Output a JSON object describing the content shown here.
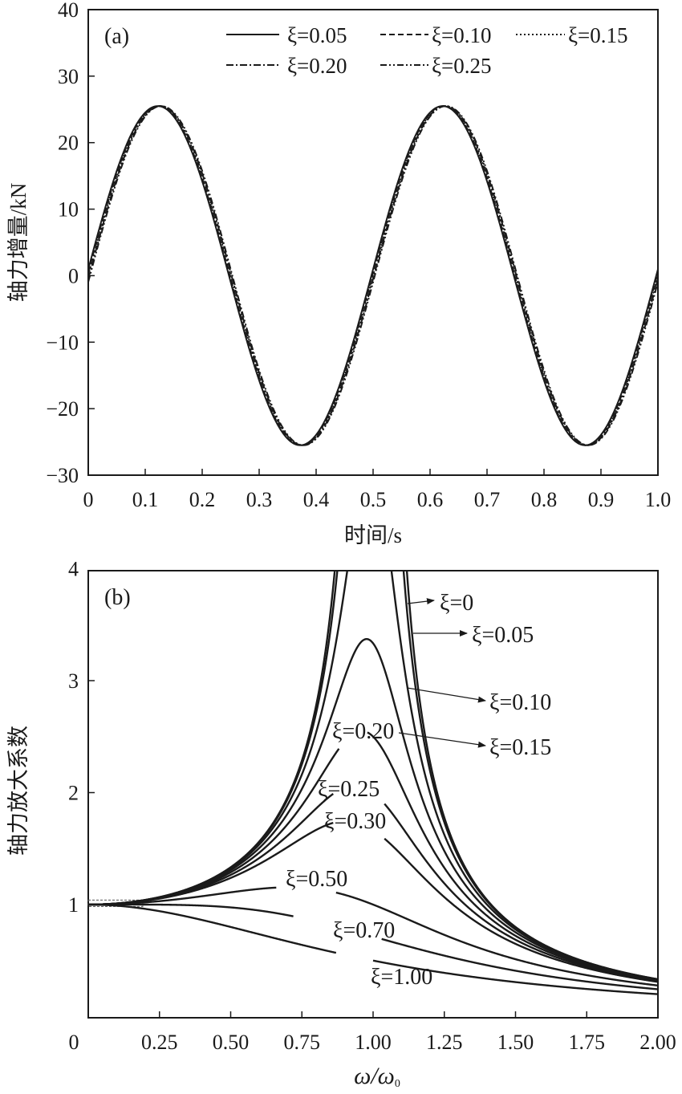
{
  "chart_data": [
    {
      "panel_label": "(a)",
      "type": "line",
      "xlabel": "时间/s",
      "ylabel": "轴力增量/kN",
      "xlim": [
        0,
        1.0
      ],
      "ylim": [
        -30,
        40
      ],
      "xticks": [
        "0",
        "0.1",
        "0.2",
        "0.3",
        "0.4",
        "0.5",
        "0.6",
        "0.7",
        "0.8",
        "0.9",
        "1.0"
      ],
      "yticks": [
        "40",
        "30",
        "20",
        "10",
        "0",
        "−10",
        "−20",
        "−30"
      ],
      "legend_position": "top",
      "series": [
        {
          "name": "ξ=0.05",
          "style": "solid",
          "amplitude": 25.5,
          "period": 0.5
        },
        {
          "name": "ξ=0.10",
          "style": "dashed",
          "amplitude": 25.5,
          "period": 0.5
        },
        {
          "name": "ξ=0.15",
          "style": "dotted",
          "amplitude": 25.5,
          "period": 0.5
        },
        {
          "name": "ξ=0.20",
          "style": "dash-dot",
          "amplitude": 25.5,
          "period": 0.5
        },
        {
          "name": "ξ=0.25",
          "style": "dash-dot-dot",
          "amplitude": 25.5,
          "period": 0.5
        }
      ]
    },
    {
      "panel_label": "(b)",
      "type": "line",
      "xlabel_main": "ω/ω",
      "xlabel_sub": "0",
      "ylabel": "轴力放大系数",
      "xlim": [
        0,
        2.0
      ],
      "ylim": [
        0.3,
        4
      ],
      "xticks": [
        "0",
        "0.25",
        "0.50",
        "0.75",
        "1.00",
        "1.25",
        "1.50",
        "1.75",
        "2.00"
      ],
      "yticks": [
        "4",
        "3",
        "2",
        "1"
      ],
      "series": [
        {
          "name": "ξ=0",
          "damping": 0
        },
        {
          "name": "ξ=0.05",
          "damping": 0.05
        },
        {
          "name": "ξ=0.10",
          "damping": 0.1
        },
        {
          "name": "ξ=0.15",
          "damping": 0.15
        },
        {
          "name": "ξ=0.20",
          "damping": 0.2
        },
        {
          "name": "ξ=0.25",
          "damping": 0.25
        },
        {
          "name": "ξ=0.30",
          "damping": 0.3
        },
        {
          "name": "ξ=0.50",
          "damping": 0.5
        },
        {
          "name": "ξ=0.70",
          "damping": 0.7
        },
        {
          "name": "ξ=1.00",
          "damping": 1.0
        }
      ]
    }
  ]
}
